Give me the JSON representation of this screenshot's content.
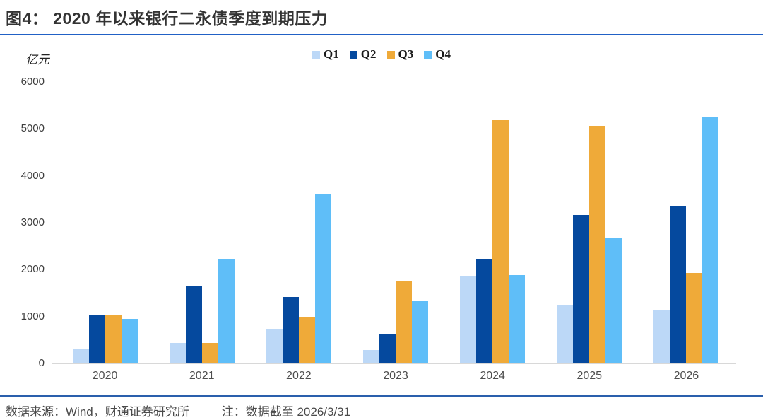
{
  "header": {
    "title": "图4： 2020 年以来银行二永债季度到期压力"
  },
  "chart_data": {
    "type": "bar",
    "title": "2020 年以来银行二永债季度到期压力",
    "unit_label": "亿元",
    "xlabel": "",
    "ylabel": "亿元",
    "ylim": [
      0,
      6000
    ],
    "ytick_step": 1000,
    "grid": false,
    "legend_position": "top-center",
    "categories": [
      "2020",
      "2021",
      "2022",
      "2023",
      "2024",
      "2025",
      "2026"
    ],
    "series": [
      {
        "name": "Q1",
        "color": "#BCD8F7",
        "values": [
          300,
          440,
          740,
          280,
          1870,
          1250,
          1150
        ]
      },
      {
        "name": "Q2",
        "color": "#05499E",
        "values": [
          1030,
          1650,
          1420,
          630,
          2230,
          3170,
          3360
        ]
      },
      {
        "name": "Q3",
        "color": "#EFAA39",
        "values": [
          1020,
          430,
          990,
          1750,
          5180,
          5070,
          1930
        ]
      },
      {
        "name": "Q4",
        "color": "#5FBEF8",
        "values": [
          950,
          2230,
          3600,
          1340,
          1890,
          2680,
          5240
        ]
      }
    ]
  },
  "footer": {
    "source": "数据来源：Wind，财通证券研究所",
    "note": "注：数据截至 2026/3/31"
  },
  "colors": {
    "title_rule": "#2161C6",
    "footer_rule": "#2A5FAC",
    "axis_line": "#D8D8D8",
    "tick_text": "#3d3d3d",
    "footer_text": "#4a4a4a"
  }
}
